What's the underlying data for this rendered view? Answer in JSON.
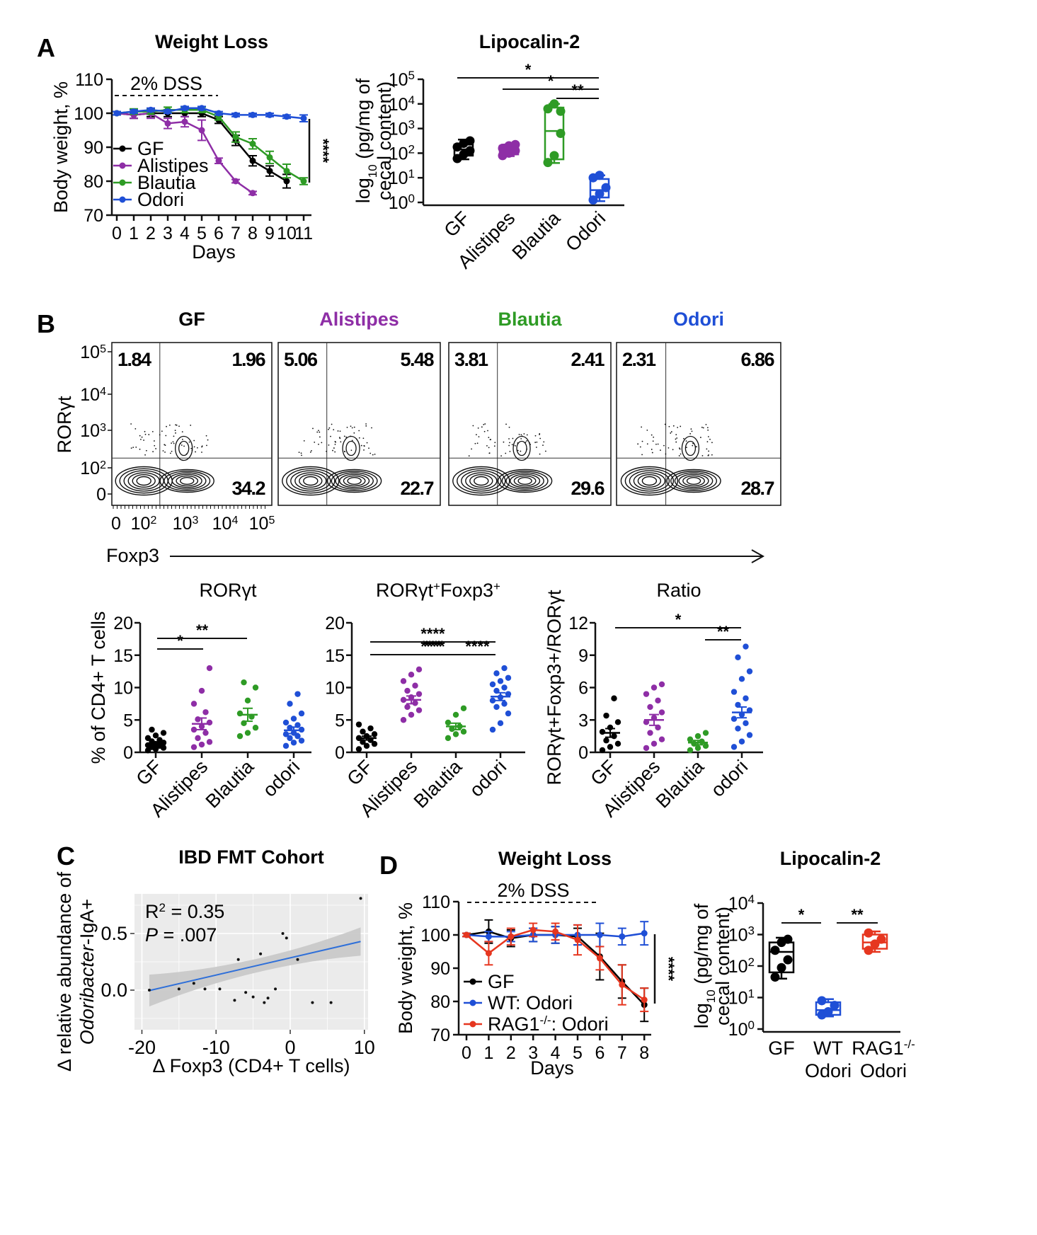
{
  "panels": {
    "A": "A",
    "B": "B",
    "C": "C",
    "D": "D"
  },
  "colors": {
    "GF": "#000000",
    "Alistipes": "#8e2ea6",
    "Blautia": "#2e9b25",
    "Odori": "#1f4fd6",
    "RAG1": "#e6361f",
    "fit": "#2e6fd9"
  },
  "chart_data": [
    {
      "id": "A_weight",
      "type": "line",
      "title": "Weight Loss",
      "xlabel": "Days",
      "ylabel": "Body weight, %",
      "x": [
        0,
        1,
        2,
        3,
        4,
        5,
        6,
        7,
        8,
        9,
        10,
        11
      ],
      "xticks": [
        "0",
        "1",
        "2",
        "3",
        "4",
        "5",
        "6",
        "7",
        "8",
        "9",
        "10",
        "11"
      ],
      "yticks": [
        70,
        80,
        90,
        100,
        110
      ],
      "ylim": [
        70,
        110
      ],
      "annotation": "2% DSS",
      "sig": "****",
      "series": [
        {
          "name": "GF",
          "color": "#000000",
          "values": [
            100,
            99.5,
            100,
            100,
            100,
            100,
            98,
            92,
            86,
            83,
            80,
            null
          ],
          "err": [
            0.5,
            1,
            1,
            1,
            1,
            1,
            1,
            1.5,
            1.5,
            1.5,
            2,
            0
          ]
        },
        {
          "name": "Alistipes",
          "color": "#8e2ea6",
          "values": [
            100,
            99.5,
            100,
            97,
            97.5,
            95,
            86,
            80,
            76.5,
            null,
            null,
            null
          ],
          "err": [
            0.5,
            1,
            1.5,
            1.5,
            1.5,
            3,
            0.8,
            0.5,
            0.5,
            0,
            0,
            0
          ]
        },
        {
          "name": "Blautia",
          "color": "#2e9b25",
          "values": [
            100,
            100.5,
            100.5,
            101,
            101,
            101,
            99,
            93,
            91,
            87,
            83,
            80
          ],
          "err": [
            0.5,
            0.8,
            0.8,
            0.8,
            0.8,
            0.8,
            1,
            1.5,
            1.5,
            1.8,
            2,
            1
          ]
        },
        {
          "name": "Odori",
          "color": "#1f4fd6",
          "values": [
            100,
            100.5,
            101,
            100.5,
            101.5,
            101.5,
            100,
            99.5,
            99.5,
            99.5,
            99,
            98.5
          ],
          "err": [
            0.5,
            0.5,
            0.5,
            0.5,
            0.5,
            0.5,
            0.5,
            0.5,
            0.5,
            0.5,
            0.5,
            1
          ]
        }
      ]
    },
    {
      "id": "A_lcn2",
      "type": "box",
      "title": "Lipocalin-2",
      "ylabel_main": "log",
      "ylabel_sub": "10",
      "ylabel_rest": " (pg/mg of",
      "ylabel2": "cecal content)",
      "categories": [
        "GF",
        "Alistipes",
        "Blautia",
        "Odori"
      ],
      "yticks_exp": [
        "0",
        "1",
        "2",
        "3",
        "4",
        "5"
      ],
      "ylim_log": [
        0,
        5
      ],
      "groups": [
        {
          "name": "GF",
          "color": "#000000",
          "q1": 1.9,
          "median": 2.15,
          "q3": 2.35,
          "min": 1.75,
          "max": 2.55,
          "points": [
            1.78,
            1.95,
            2.1,
            2.25,
            2.4,
            2.5
          ]
        },
        {
          "name": "Alistipes",
          "color": "#8e2ea6",
          "q1": 1.95,
          "median": 2.1,
          "q3": 2.3,
          "min": 1.88,
          "max": 2.35,
          "points": [
            1.9,
            2.0,
            2.1,
            2.2,
            2.3,
            2.35
          ]
        },
        {
          "name": "Blautia",
          "color": "#2e9b25",
          "q1": 1.75,
          "median": 2.9,
          "q3": 3.85,
          "min": 1.6,
          "max": 4.0,
          "points": [
            1.62,
            1.9,
            2.8,
            3.8,
            4.0,
            3.7
          ]
        },
        {
          "name": "Odori",
          "color": "#1f4fd6",
          "q1": 0.2,
          "median": 0.5,
          "q3": 0.95,
          "min": 0.05,
          "max": 1.1,
          "points": [
            0.1,
            0.35,
            0.6,
            1.0,
            1.1
          ]
        }
      ],
      "brackets": [
        {
          "from": 0,
          "to": 3,
          "label": "*"
        },
        {
          "from": 1,
          "to": 3,
          "label": "*"
        },
        {
          "from": 2,
          "to": 3,
          "label": "**"
        }
      ]
    },
    {
      "id": "B_flow",
      "type": "contour",
      "panels": [
        {
          "name": "GF",
          "color": "#000000",
          "ul": "1.84",
          "ur": "1.96",
          "lr": "34.2"
        },
        {
          "name": "Alistipes",
          "color": "#8e2ea6",
          "ul": "5.06",
          "ur": "5.48",
          "lr": "22.7"
        },
        {
          "name": "Blautia",
          "color": "#2e9b25",
          "ul": "3.81",
          "ur": "2.41",
          "lr": "29.6"
        },
        {
          "name": "Odori",
          "color": "#1f4fd6",
          "ul": "2.31",
          "ur": "6.86",
          "lr": "28.7"
        }
      ],
      "ylabel": "RORγt",
      "xlabel": "Foxp3",
      "yticks": [
        {
          "b": "10",
          "e": "5"
        },
        {
          "b": "10",
          "e": "4"
        },
        {
          "b": "10",
          "e": "3"
        },
        {
          "b": "10",
          "e": "2"
        },
        {
          "b": "0",
          "e": ""
        }
      ],
      "xticks": [
        {
          "b": "0",
          "e": ""
        },
        {
          "b": "10",
          "e": "2"
        },
        {
          "b": "10",
          "e": "3"
        },
        {
          "b": "10",
          "e": "4"
        },
        {
          "b": "10",
          "e": "5"
        }
      ]
    },
    {
      "id": "B_ror",
      "type": "scatter",
      "title": "RORγt",
      "ylabel": "% of CD4+ T cells",
      "categories": [
        "GF",
        "Alistipes",
        "Blautia",
        "odori"
      ],
      "yticks": [
        0,
        5,
        10,
        15,
        20
      ],
      "ylim": [
        0,
        20
      ],
      "groups": [
        {
          "name": "GF",
          "color": "#000000",
          "mean": 1.2,
          "sem": 0.3,
          "points": [
            0.3,
            0.5,
            0.7,
            0.8,
            1.0,
            1.1,
            1.3,
            1.5,
            1.7,
            1.9,
            2.2,
            2.6,
            3.0,
            3.5
          ]
        },
        {
          "name": "Alistipes",
          "color": "#8e2ea6",
          "mean": 4.4,
          "sem": 0.9,
          "points": [
            0.8,
            1.2,
            1.6,
            2.2,
            3.0,
            3.5,
            4.0,
            4.6,
            5.1,
            6.2,
            7.5,
            9.5,
            13.0
          ]
        },
        {
          "name": "Blautia",
          "color": "#2e9b25",
          "mean": 5.8,
          "sem": 1.0,
          "points": [
            2.5,
            3.0,
            3.8,
            4.5,
            5.5,
            6.0,
            8.0,
            10.0,
            10.8
          ]
        },
        {
          "name": "odori",
          "color": "#1f4fd6",
          "mean": 3.4,
          "sem": 0.5,
          "points": [
            1.0,
            1.5,
            1.8,
            2.2,
            2.5,
            2.8,
            3.0,
            3.5,
            3.8,
            4.2,
            4.6,
            5.2,
            6.0,
            7.5,
            9.0
          ]
        }
      ],
      "brackets": [
        {
          "from": 0,
          "to": 1,
          "label": "*"
        },
        {
          "from": 0,
          "to": 2,
          "label": "**"
        }
      ]
    },
    {
      "id": "B_dp",
      "type": "scatter",
      "title_main": "RORγt",
      "title_sup1": "+",
      "title_mid": "Foxp3",
      "title_sup2": "+",
      "categories": [
        "GF",
        "Alistipes",
        "Blautia",
        "odori"
      ],
      "yticks": [
        0,
        5,
        10,
        15,
        20
      ],
      "ylim": [
        0,
        20
      ],
      "groups": [
        {
          "name": "GF",
          "color": "#000000",
          "mean": 2.2,
          "sem": 0.3,
          "points": [
            0.5,
            1.0,
            1.3,
            1.6,
            1.9,
            2.2,
            2.5,
            2.8,
            3.2,
            3.7,
            4.3
          ]
        },
        {
          "name": "Alistipes",
          "color": "#8e2ea6",
          "mean": 8.1,
          "sem": 0.6,
          "points": [
            5.0,
            5.8,
            6.5,
            7.0,
            7.6,
            8.1,
            8.5,
            9.0,
            9.5,
            10.3,
            11.0,
            12.0,
            12.8
          ]
        },
        {
          "name": "Blautia",
          "color": "#2e9b25",
          "mean": 4.0,
          "sem": 0.5,
          "points": [
            2.2,
            2.8,
            3.2,
            3.6,
            4.0,
            4.6,
            5.8,
            6.8
          ]
        },
        {
          "name": "odori",
          "color": "#1f4fd6",
          "mean": 8.6,
          "sem": 0.6,
          "points": [
            3.5,
            4.5,
            6.0,
            7.0,
            7.5,
            8.0,
            8.5,
            9.0,
            9.5,
            10.0,
            10.5,
            11.0,
            11.5,
            12.2,
            13.0
          ]
        }
      ],
      "brackets": [
        {
          "from": 0,
          "to": 3,
          "label": "****"
        },
        {
          "from": 0,
          "to": 1,
          "label": "****"
        },
        {
          "from": 1,
          "to": 2,
          "label": "***"
        },
        {
          "from": 2,
          "to": 3,
          "label": "****"
        }
      ]
    },
    {
      "id": "B_ratio",
      "type": "scatter",
      "title": "Ratio",
      "ylabel": "RORγt+Foxp3+/RORγt",
      "categories": [
        "GF",
        "Alistipes",
        "Blautia",
        "odori"
      ],
      "yticks": [
        0,
        3,
        6,
        9,
        12
      ],
      "ylim": [
        0,
        12
      ],
      "groups": [
        {
          "name": "GF",
          "color": "#000000",
          "mean": 1.8,
          "sem": 0.4,
          "points": [
            0.2,
            0.5,
            0.8,
            1.1,
            1.5,
            1.9,
            2.3,
            2.8,
            3.4,
            5.0
          ]
        },
        {
          "name": "Alistipes",
          "color": "#8e2ea6",
          "mean": 3.0,
          "sem": 0.5,
          "points": [
            0.4,
            0.8,
            1.2,
            1.8,
            2.3,
            2.8,
            3.2,
            3.7,
            4.2,
            4.8,
            5.4,
            6.0,
            6.3
          ]
        },
        {
          "name": "Blautia",
          "color": "#2e9b25",
          "mean": 0.9,
          "sem": 0.2,
          "points": [
            0.2,
            0.4,
            0.6,
            0.8,
            1.0,
            1.2,
            1.5,
            1.8
          ]
        },
        {
          "name": "odori",
          "color": "#1f4fd6",
          "mean": 3.7,
          "sem": 0.5,
          "points": [
            0.5,
            1.0,
            1.6,
            2.2,
            2.7,
            3.1,
            3.5,
            3.9,
            4.4,
            5.0,
            5.6,
            6.8,
            7.5,
            8.8,
            9.8
          ]
        }
      ],
      "brackets": [
        {
          "from": 0,
          "to": 3,
          "label": "*"
        },
        {
          "from": 2,
          "to": 3,
          "label": "**"
        }
      ]
    },
    {
      "id": "C_corr",
      "type": "scatter",
      "title": "IBD FMT Cohort",
      "xlabel_main": "Δ Foxp3 (CD4+ T cells)",
      "ylabel_a": "Δ relative abundance of",
      "ylabel_b": "Odoribacter",
      "ylabel_c": "-IgA+",
      "xticks": [
        -20,
        -10,
        0,
        10
      ],
      "yticks": [
        0.0,
        0.5
      ],
      "xtick_labels": [
        "-20",
        "-10",
        "0",
        "10"
      ],
      "ytick_labels": [
        "0.0",
        "0.5"
      ],
      "xlim": [
        -21,
        10.5
      ],
      "ylim": [
        -0.35,
        0.85
      ],
      "r2_main": "R",
      "r2_sup": "2",
      "r2_val": " = 0.35",
      "p_label": "P",
      "p_val": " = .007",
      "fit": {
        "intercept": 0.285,
        "slope": 0.0152
      },
      "points": [
        [
          -19.0,
          0.0
        ],
        [
          -15.0,
          0.01
        ],
        [
          -13,
          0.06
        ],
        [
          -11.5,
          0.01
        ],
        [
          -9.5,
          0.01
        ],
        [
          -7.5,
          -0.09
        ],
        [
          -7,
          0.27
        ],
        [
          -6,
          -0.02
        ],
        [
          -5,
          -0.06
        ],
        [
          -4,
          0.32
        ],
        [
          -3.5,
          -0.11
        ],
        [
          -3,
          -0.07
        ],
        [
          -2,
          0.01
        ],
        [
          -1,
          0.5
        ],
        [
          -0.5,
          0.46
        ],
        [
          1,
          0.27
        ],
        [
          3,
          -0.11
        ],
        [
          5.5,
          -0.11
        ],
        [
          9.5,
          0.81
        ]
      ]
    },
    {
      "id": "D_weight",
      "type": "line",
      "title": "Weight Loss",
      "xlabel": "Days",
      "ylabel": "Body weight, %",
      "x": [
        0,
        1,
        2,
        3,
        4,
        5,
        6,
        7,
        8
      ],
      "xticks": [
        "0",
        "1",
        "2",
        "3",
        "4",
        "5",
        "6",
        "7",
        "8"
      ],
      "yticks": [
        70,
        80,
        90,
        100,
        110
      ],
      "ylim": [
        70,
        110
      ],
      "annotation": "2% DSS",
      "sig": "****",
      "series": [
        {
          "name": "GF",
          "color": "#000000",
          "values": [
            100,
            101,
            99,
            100,
            100,
            99.5,
            93.5,
            86,
            79
          ],
          "err": [
            0.5,
            3.5,
            2.5,
            2,
            2.5,
            2.5,
            7,
            5,
            5
          ]
        },
        {
          "name": "WT: Odori",
          "color": "#1f4fd6",
          "values": [
            100,
            99.5,
            99.5,
            100,
            100,
            100,
            100,
            99.5,
            100.5
          ],
          "err": [
            0.5,
            1.5,
            1.5,
            2,
            2.5,
            3,
            3.5,
            2.5,
            3.5
          ]
        },
        {
          "name": "RAG1",
          "sup": "-/-",
          "suffix": ": Odori",
          "color": "#e6361f",
          "values": [
            100,
            94.5,
            99.5,
            101.5,
            101,
            98.5,
            93,
            85,
            80.5
          ],
          "err": [
            0.5,
            3.5,
            2.5,
            2,
            2.5,
            4.5,
            3.5,
            6,
            3.5
          ]
        }
      ]
    },
    {
      "id": "D_lcn2",
      "type": "box",
      "title": "Lipocalin-2",
      "ylabel_main": "log",
      "ylabel_sub": "10",
      "ylabel_rest": " (pg/mg of",
      "ylabel2": "cecal content)",
      "yticks_exp": [
        "0",
        "1",
        "2",
        "3",
        "4"
      ],
      "ylim_log": [
        0,
        4
      ],
      "cat_lines": [
        [
          "GF",
          ""
        ],
        [
          "WT",
          "Odori"
        ],
        [
          "RAG1",
          "Odori"
        ]
      ],
      "rag_sup": "-/-",
      "groups": [
        {
          "name": "GF",
          "color": "#000000",
          "q1": 1.8,
          "median": 2.45,
          "q3": 2.75,
          "min": 1.6,
          "max": 2.9,
          "points": [
            1.65,
            1.95,
            2.2,
            2.5,
            2.75,
            2.85
          ]
        },
        {
          "name": "WT Odori",
          "color": "#1f4fd6",
          "q1": 0.45,
          "median": 0.6,
          "q3": 0.85,
          "min": 0.4,
          "max": 0.95,
          "points": [
            0.45,
            0.55,
            0.75,
            0.9
          ]
        },
        {
          "name": "RAG1 Odori",
          "color": "#e6361f",
          "q1": 2.55,
          "median": 2.75,
          "q3": 3.0,
          "min": 2.45,
          "max": 3.1,
          "points": [
            2.5,
            2.7,
            2.85,
            3.05
          ]
        }
      ],
      "brackets": [
        {
          "from": 0,
          "to": 1,
          "label": "*"
        },
        {
          "from": 1,
          "to": 2,
          "label": "**"
        }
      ]
    }
  ]
}
